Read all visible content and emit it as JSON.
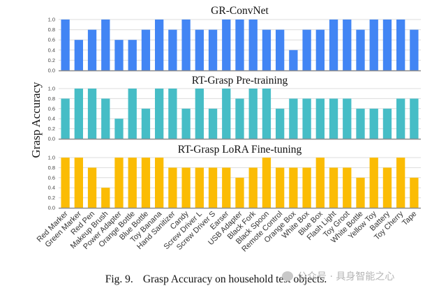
{
  "chart_data": [
    {
      "type": "bar",
      "title": "GR-ConvNet",
      "color": "#4285f4",
      "categories": [
        "Red Marker",
        "Green Marker",
        "Red Pen",
        "Makeup Brush",
        "Power Adapter",
        "Orange Bottle",
        "Blue Bottle",
        "Toy Banana",
        "Hand Sanitizer",
        "Candy",
        "Screw Driver L",
        "Screw Driver S",
        "Earser",
        "USB Adapter",
        "Black Fork",
        "Black Spoon",
        "Remote Control",
        "Orange Box",
        "White Box",
        "Blue Box",
        "Flash Light",
        "Toy Groot",
        "White Bottle",
        "Yellow Toy",
        "Battery",
        "Toy Cherry",
        "Tape"
      ],
      "values": [
        1.0,
        0.6,
        0.8,
        1.0,
        0.6,
        0.6,
        0.8,
        1.0,
        0.8,
        1.0,
        0.8,
        0.8,
        1.0,
        1.0,
        1.0,
        0.8,
        0.8,
        0.4,
        0.8,
        0.8,
        1.0,
        1.0,
        0.8,
        1.0,
        1.0,
        1.0,
        0.8
      ],
      "ylim": [
        0,
        1.0
      ],
      "yticks": [
        "0.0",
        "0.2",
        "0.4",
        "0.6",
        "0.8",
        "1.0"
      ],
      "grid": true
    },
    {
      "type": "bar",
      "title": "RT-Grasp Pre-training",
      "color": "#46bdc6",
      "categories": [
        "Red Marker",
        "Green Marker",
        "Red Pen",
        "Makeup Brush",
        "Power Adapter",
        "Orange Bottle",
        "Blue Bottle",
        "Toy Banana",
        "Hand Sanitizer",
        "Candy",
        "Screw Driver L",
        "Screw Driver S",
        "Earser",
        "USB Adapter",
        "Black Fork",
        "Black Spoon",
        "Remote Control",
        "Orange Box",
        "White Box",
        "Blue Box",
        "Flash Light",
        "Toy Groot",
        "White Bottle",
        "Yellow Toy",
        "Battery",
        "Toy Cherry",
        "Tape"
      ],
      "values": [
        0.8,
        1.0,
        1.0,
        0.8,
        0.4,
        1.0,
        0.6,
        1.0,
        1.0,
        0.6,
        1.0,
        0.6,
        1.0,
        0.8,
        1.0,
        1.0,
        0.6,
        0.8,
        0.8,
        0.8,
        0.8,
        0.8,
        0.6,
        0.6,
        0.6,
        0.8,
        0.8
      ],
      "ylim": [
        0,
        1.0
      ],
      "yticks": [
        "0.0",
        "0.2",
        "0.4",
        "0.6",
        "0.8",
        "1.0"
      ],
      "grid": true
    },
    {
      "type": "bar",
      "title": "RT-Grasp LoRA Fine-tuning",
      "color": "#fbbc04",
      "categories": [
        "Red Marker",
        "Green Marker",
        "Red Pen",
        "Makeup Brush",
        "Power Adapter",
        "Orange Bottle",
        "Blue Bottle",
        "Toy Banana",
        "Hand Sanitizer",
        "Candy",
        "Screw Driver L",
        "Screw Driver S",
        "Earser",
        "USB Adapter",
        "Black Fork",
        "Black Spoon",
        "Remote Control",
        "Orange Box",
        "White Box",
        "Blue Box",
        "Flash Light",
        "Toy Groot",
        "White Bottle",
        "Yellow Toy",
        "Battery",
        "Toy Cherry",
        "Tape"
      ],
      "values": [
        1.0,
        1.0,
        0.8,
        0.4,
        1.0,
        1.0,
        1.0,
        1.0,
        0.8,
        0.8,
        0.8,
        0.8,
        0.8,
        0.6,
        0.8,
        1.0,
        0.8,
        0.8,
        0.8,
        1.0,
        0.8,
        0.8,
        0.6,
        1.0,
        0.8,
        1.0,
        0.6
      ],
      "ylim": [
        0,
        1.0
      ],
      "yticks": [
        "0.0",
        "0.2",
        "0.4",
        "0.6",
        "0.8",
        "1.0"
      ],
      "grid": true
    }
  ],
  "ylabel": "Grasp Accuracy",
  "caption": {
    "fig_label": "Fig. 9.",
    "text": "Grasp Accuracy on household test objects."
  },
  "watermark": "公众号 · 具身智能之心"
}
